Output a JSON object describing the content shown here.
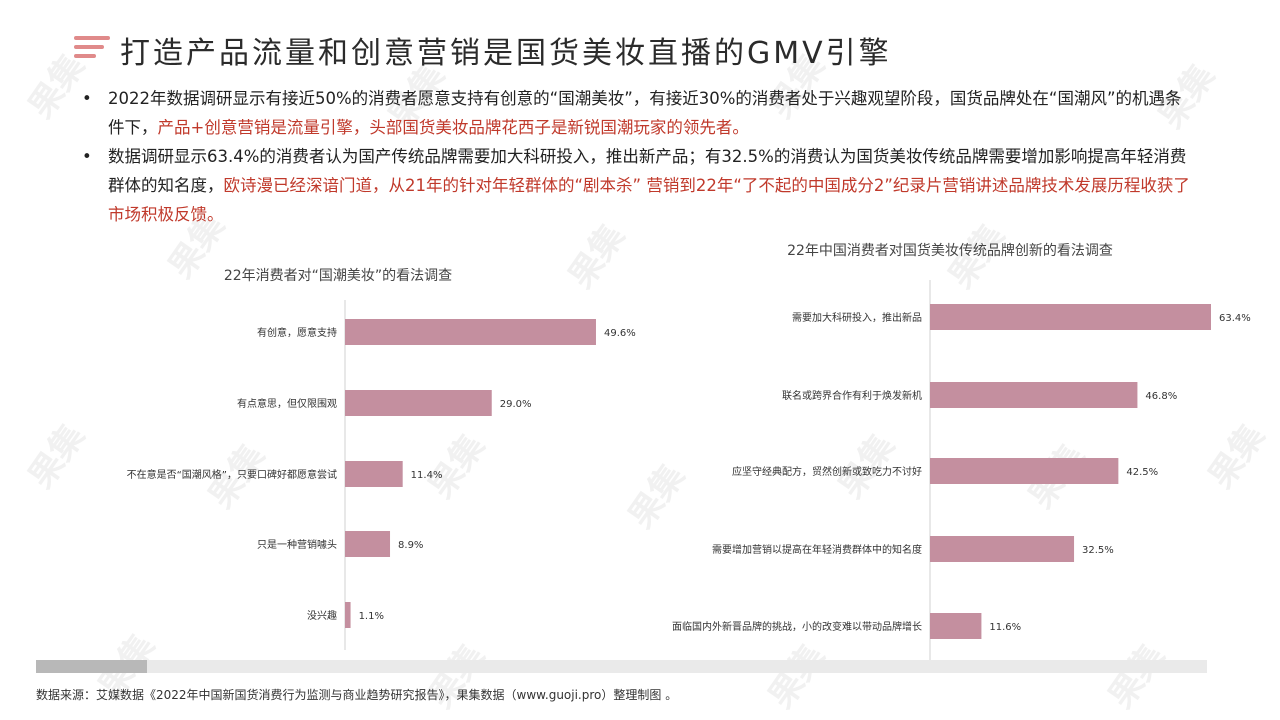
{
  "title": "打造产品流量和创意营销是国货美妆直播的GMV引擎",
  "bullets": [
    {
      "plain": "2022年数据调研显示有接近50%的消费者愿意支持有创意的“国潮美妆”，有接近30%的消费者处于兴趣观望阶段，国货品牌处在“国潮风”的机遇条件下，",
      "highlight": "产品+创意营销是流量引擎，头部国货美妆品牌花西子是新锐国潮玩家的领先者。"
    },
    {
      "plain": "数据调研显示63.4%的消费者认为国产传统品牌需要加大科研投入，推出新产品；有32.5%的消费认为国货美妆传统品牌需要增加影响提高年轻消费群体的知名度，",
      "highlight": "欧诗漫已经深谙门道，从21年的针对年轻群体的“剧本杀” 营销到22年“了不起的中国成分2”纪录片营销讲述品牌技术发展历程收获了市场积极反馈。"
    }
  ],
  "watermark": "果集",
  "colors": {
    "bar": "#c48f9f",
    "accent": "#e08a8a",
    "highlight": "#c0392b"
  },
  "chart_data": [
    {
      "type": "bar",
      "orientation": "horizontal",
      "title": "22年消费者对“国潮美妆”的看法调查",
      "categories": [
        "有创意，愿意支持",
        "有点意思，但仅限围观",
        "不在意是否“国潮风格”，只要口碑好都愿意尝试",
        "只是一种营销噱头",
        "没兴趣"
      ],
      "values": [
        49.6,
        29.0,
        11.4,
        8.9,
        1.1
      ],
      "labels": [
        "49.6%",
        "29.0%",
        "11.4%",
        "8.9%",
        "1.1%"
      ],
      "xlim": [
        0,
        50
      ]
    },
    {
      "type": "bar",
      "orientation": "horizontal",
      "title": "22年中国消费者对国货美妆传统品牌创新的看法调查",
      "categories": [
        "需要加大科研投入，推出新品",
        "联名或跨界合作有利于焕发新机",
        "应坚守经典配方，贸然创新或致吃力不讨好",
        "需要增加营销以提高在年轻消费群体中的知名度",
        "面临国内外新晋品牌的挑战，小的改变难以带动品牌增长"
      ],
      "values": [
        63.4,
        46.8,
        42.5,
        32.5,
        11.6
      ],
      "labels": [
        "63.4%",
        "46.8%",
        "42.5%",
        "32.5%",
        "11.6%"
      ],
      "xlim": [
        0,
        63.4
      ]
    }
  ],
  "source": "数据来源：艾媒数据《2022年中国新国货消费行为监测与商业趋势研究报告》，果集数据（www.guoji.pro）整理制图 。"
}
